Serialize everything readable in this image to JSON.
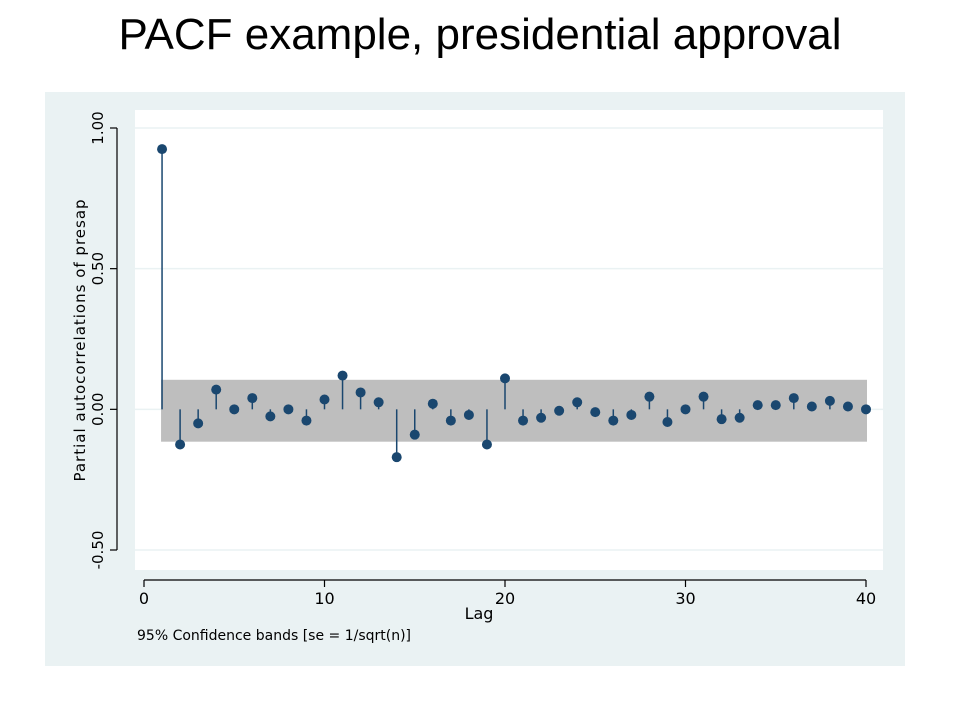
{
  "slide": {
    "title": "PACF example, presidential approval"
  },
  "colors": {
    "outer_bg": "#eaf2f3",
    "plot_bg": "#ffffff",
    "band": "#bebebe",
    "marker": "#1a476f",
    "grid": "#eaf2f3"
  },
  "chart_data": {
    "type": "scatter",
    "style": "stem-with-markers",
    "x_label": "Lag",
    "y_label": "Partial autocorrelations of presap",
    "x_ticks": [
      0,
      10,
      20,
      30,
      40
    ],
    "y_ticks": [
      -0.5,
      0.0,
      0.5,
      1.0
    ],
    "y_tick_labels": [
      "-0.50",
      "0.00",
      "0.50",
      "1.00"
    ],
    "xlim": [
      0,
      40
    ],
    "ylim": [
      -0.5,
      1.0
    ],
    "grid": true,
    "confidence_band": {
      "lower": -0.115,
      "upper": 0.105,
      "from_lag": 1,
      "to_lag": 40
    },
    "note": "95% Confidence bands [se = 1/sqrt(n)]",
    "series": [
      {
        "x": [
          1,
          2,
          3,
          4,
          5,
          6,
          7,
          8,
          9,
          10,
          11,
          12,
          13,
          14,
          15,
          16,
          17,
          18,
          19,
          20,
          21,
          22,
          23,
          24,
          25,
          26,
          27,
          28,
          29,
          30,
          31,
          32,
          33,
          34,
          35,
          36,
          37,
          38,
          39,
          40
        ],
        "values": [
          0.925,
          -0.125,
          -0.05,
          0.07,
          0.0,
          0.04,
          -0.025,
          0.0,
          -0.04,
          0.035,
          0.12,
          0.06,
          0.025,
          -0.17,
          -0.09,
          0.02,
          -0.04,
          -0.02,
          -0.125,
          0.11,
          -0.04,
          -0.03,
          -0.005,
          0.025,
          -0.01,
          -0.04,
          -0.02,
          0.045,
          -0.045,
          0.0,
          0.045,
          -0.035,
          -0.03,
          0.015,
          0.015,
          0.04,
          0.01,
          0.03,
          0.01,
          0.0
        ]
      }
    ]
  }
}
